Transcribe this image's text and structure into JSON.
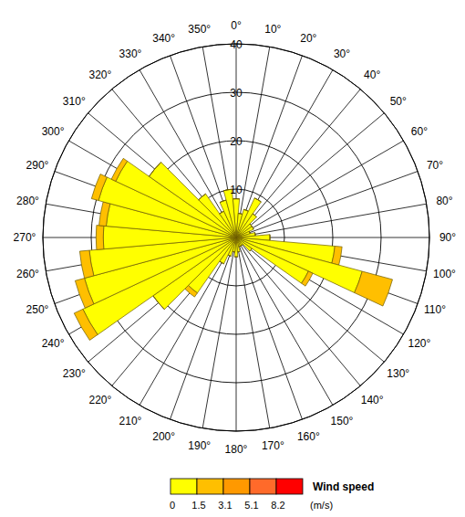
{
  "chart_data": {
    "type": "rose",
    "categories": [
      "0°",
      "10°",
      "20°",
      "30°",
      "40°",
      "50°",
      "60°",
      "70°",
      "80°",
      "90°",
      "100°",
      "110°",
      "120°",
      "130°",
      "140°",
      "150°",
      "160°",
      "170°",
      "180°",
      "190°",
      "200°",
      "210°",
      "220°",
      "230°",
      "240°",
      "250°",
      "260°",
      "270°",
      "280°",
      "290°",
      "300°",
      "310°",
      "320°",
      "330°",
      "340°",
      "350°"
    ],
    "series": [
      {
        "color": "#ffff00",
        "values": [
          8,
          5,
          6,
          9,
          6,
          4,
          4,
          3,
          4,
          7,
          20.5,
          27,
          16.5,
          4,
          2,
          2,
          2,
          3,
          4,
          3,
          4,
          6,
          14,
          21,
          35,
          32.5,
          30.5,
          27.5,
          27,
          29.5,
          27.5,
          22,
          11,
          6,
          8,
          10
        ]
      },
      {
        "color": "#ffbf00",
        "values": [
          0,
          0,
          0,
          0,
          0,
          0,
          0,
          0,
          0,
          0,
          1.5,
          6.5,
          1,
          0,
          0,
          0,
          0,
          0,
          0,
          0,
          0,
          0,
          1,
          0,
          2,
          2,
          2,
          1.5,
          1.5,
          1.5,
          1,
          0,
          0,
          0,
          0,
          0
        ]
      }
    ],
    "stacked": true,
    "ylim": [
      0,
      40
    ],
    "yticks": [
      10,
      20,
      30,
      40
    ],
    "grid": true,
    "color_bar": {
      "title": "Wind speed",
      "unit": "(m/s)",
      "ticks": [
        0,
        1.5,
        3.1,
        5.1,
        8.2
      ],
      "colors": [
        "#ffff00",
        "#ffbf00",
        "#ff9900",
        "#ff6a2a",
        "#ff0000"
      ]
    }
  }
}
